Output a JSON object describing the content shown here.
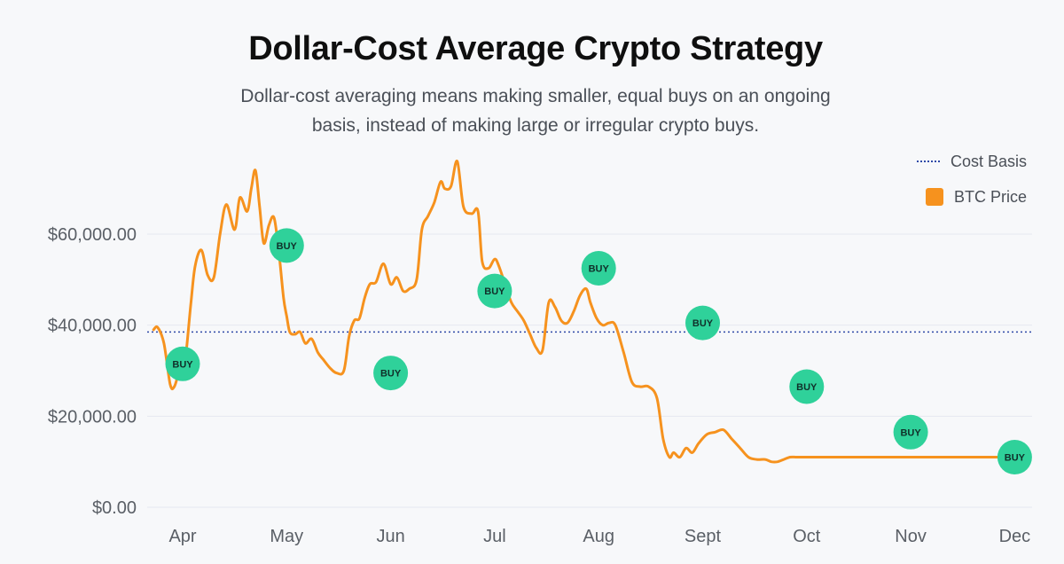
{
  "header": {
    "title": "Dollar-Cost Average Crypto Strategy",
    "subtitle": "Dollar-cost averaging means making smaller, equal buys on an ongoing basis, instead of making large or irregular crypto buys."
  },
  "legend": {
    "cost_basis_label": "Cost Basis",
    "price_label": "BTC Price"
  },
  "colors": {
    "price_line": "#f6921e",
    "cost_basis": "#2f4aa8",
    "buy_marker": "#2fd19a",
    "grid": "#e6e9f0"
  },
  "chart_data": {
    "type": "line",
    "title": "Dollar-Cost Average Crypto Strategy",
    "y_tick_labels": [
      "$0.00",
      "$20,000.00",
      "$40,000.00",
      "$60,000.00"
    ],
    "y_ticks": [
      0,
      20000,
      40000,
      60000
    ],
    "ylim": [
      0,
      78000
    ],
    "x_tick_labels": [
      "Apr",
      "May",
      "Jun",
      "Jul",
      "Aug",
      "Sept",
      "Oct",
      "Nov",
      "Dec"
    ],
    "xlim": [
      -0.33,
      8.07
    ],
    "grid": true,
    "legend_position": "top-right",
    "cost_basis": 38500,
    "series": [
      {
        "name": "BTC Price",
        "x": [
          -0.28,
          -0.24,
          -0.18,
          -0.12,
          -0.08,
          -0.03,
          0.02,
          0.08,
          0.12,
          0.18,
          0.24,
          0.3,
          0.36,
          0.42,
          0.5,
          0.55,
          0.62,
          0.66,
          0.7,
          0.74,
          0.78,
          0.83,
          0.88,
          0.93,
          0.97,
          1.0,
          1.03,
          1.08,
          1.13,
          1.18,
          1.24,
          1.3,
          1.35,
          1.42,
          1.48,
          1.55,
          1.6,
          1.65,
          1.7,
          1.75,
          1.8,
          1.86,
          1.93,
          2.0,
          2.06,
          2.12,
          2.18,
          2.25,
          2.3,
          2.36,
          2.42,
          2.48,
          2.52,
          2.58,
          2.64,
          2.7,
          2.78,
          2.84,
          2.88,
          2.94,
          3.0,
          3.04,
          3.1,
          3.16,
          3.22,
          3.28,
          3.34,
          3.4,
          3.46,
          3.52,
          3.58,
          3.64,
          3.7,
          3.76,
          3.82,
          3.88,
          3.92,
          3.98,
          4.04,
          4.1,
          4.16,
          4.24,
          4.32,
          4.4,
          4.48,
          4.56,
          4.62,
          4.68,
          4.72,
          4.78,
          4.84,
          4.9,
          4.96,
          5.04,
          5.12,
          5.2,
          5.28,
          5.36,
          5.44,
          5.52,
          5.6,
          5.66,
          5.72,
          5.78,
          5.84,
          5.9,
          5.96,
          6.02,
          6.08,
          6.14,
          6.2,
          6.26,
          6.32,
          6.38,
          6.46,
          6.52,
          6.58,
          6.64,
          6.7,
          6.76,
          6.84,
          6.9,
          6.98,
          7.06,
          7.14,
          7.2,
          7.28,
          7.36,
          7.44,
          7.52,
          7.6,
          7.7,
          7.8,
          7.9,
          8.0
        ],
        "values": [
          39000,
          39500,
          36000,
          27000,
          26500,
          30000,
          31500,
          45000,
          53000,
          56500,
          51000,
          50500,
          60000,
          66500,
          61000,
          68000,
          65000,
          70000,
          74000,
          66000,
          58000,
          62000,
          63500,
          55000,
          46000,
          42000,
          38500,
          38000,
          38500,
          36000,
          37000,
          34000,
          32500,
          30500,
          29500,
          30000,
          37500,
          41000,
          41500,
          46000,
          49000,
          49500,
          53500,
          49000,
          50500,
          47500,
          48000,
          50000,
          61000,
          64000,
          67000,
          71500,
          70000,
          70500,
          76000,
          66000,
          64500,
          65000,
          54000,
          52500,
          54500,
          53000,
          49000,
          45000,
          43000,
          41000,
          38000,
          35000,
          34500,
          45000,
          44000,
          41000,
          40500,
          43000,
          46500,
          48000,
          45000,
          41500,
          40000,
          40500,
          40000,
          34000,
          27500,
          26500,
          26500,
          24000,
          15000,
          11000,
          12000,
          11000,
          13000,
          12000,
          14000,
          16000,
          16500,
          17000,
          15000,
          13000,
          11000,
          10500,
          10500,
          10000,
          10000,
          10500,
          11000,
          11000,
          11000,
          11000,
          11000,
          11000,
          11000,
          11000,
          11000,
          11000,
          11000,
          11000,
          11000,
          11000,
          11000,
          11000,
          11000,
          11000,
          11000,
          11000,
          11000,
          11000,
          11000,
          11000,
          11000,
          11000,
          11000,
          11000,
          11000,
          11000,
          11000
        ]
      }
    ],
    "buys": [
      {
        "x": 0.0,
        "y": 31500,
        "label": "BUY"
      },
      {
        "x": 1.0,
        "y": 57500,
        "label": "BUY"
      },
      {
        "x": 2.0,
        "y": 29500,
        "label": "BUY"
      },
      {
        "x": 3.0,
        "y": 47500,
        "label": "BUY"
      },
      {
        "x": 4.0,
        "y": 52500,
        "label": "BUY"
      },
      {
        "x": 5.0,
        "y": 40500,
        "label": "BUY"
      },
      {
        "x": 6.0,
        "y": 26500,
        "label": "BUY"
      },
      {
        "x": 7.0,
        "y": 16500,
        "label": "BUY"
      },
      {
        "x": 8.0,
        "y": 11000,
        "label": "BUY"
      }
    ]
  }
}
